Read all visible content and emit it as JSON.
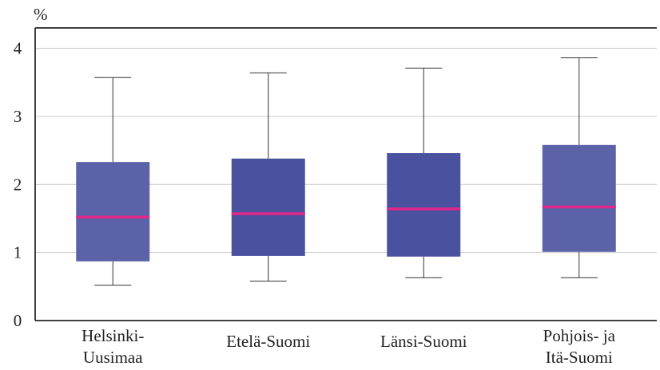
{
  "chart_data": {
    "type": "box",
    "ylabel": "%",
    "ylim": [
      0,
      4.3
    ],
    "yticks": [
      0,
      1,
      2,
      3,
      4
    ],
    "grid": true,
    "categories": [
      [
        "Helsinki-",
        "Uusimaa"
      ],
      [
        "Etelä-Suomi"
      ],
      [
        "Länsi-Suomi"
      ],
      [
        "Pohjois- ja",
        "Itä-Suomi"
      ]
    ],
    "boxes": [
      {
        "min": 0.52,
        "q1": 0.87,
        "median": 1.52,
        "q3": 2.33,
        "max": 3.57
      },
      {
        "min": 0.58,
        "q1": 0.95,
        "median": 1.57,
        "q3": 2.38,
        "max": 3.64
      },
      {
        "min": 0.63,
        "q1": 0.94,
        "median": 1.64,
        "q3": 2.46,
        "max": 3.71
      },
      {
        "min": 0.63,
        "q1": 1.01,
        "median": 1.67,
        "q3": 2.58,
        "max": 3.86
      }
    ],
    "colors": {
      "box_fills": [
        "#5b62a8",
        "#4a519e",
        "#4a519e",
        "#5b62a8"
      ],
      "median": "#e0288a",
      "whisker": "#333333",
      "grid": "#c8c8c8",
      "axis": "#000000"
    }
  }
}
